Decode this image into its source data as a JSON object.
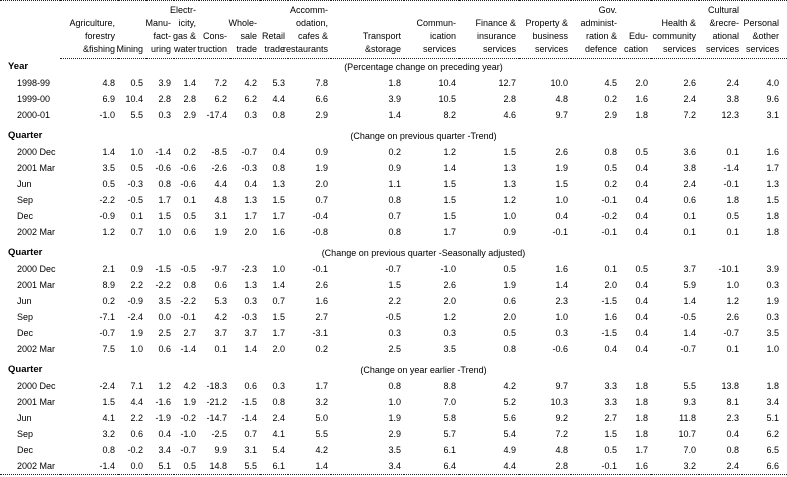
{
  "table": {
    "columns": [
      {
        "name": "Agriculture, forestry & fishing",
        "lines": [
          "Agriculture,",
          "forestry",
          "&fishing"
        ]
      },
      {
        "name": "Mining",
        "lines": [
          "Mining"
        ]
      },
      {
        "name": "Manufacturing",
        "lines": [
          "Manu-",
          "fact-",
          "uring"
        ]
      },
      {
        "name": "Electricity, gas & water",
        "lines": [
          "Electr-",
          "icity,",
          "gas &",
          "water"
        ]
      },
      {
        "name": "Construction",
        "lines": [
          "Cons-",
          "truction"
        ]
      },
      {
        "name": "Wholesale trade",
        "lines": [
          "Whole-",
          "sale",
          "trade"
        ]
      },
      {
        "name": "Retail trade",
        "lines": [
          "Retail",
          "trade"
        ]
      },
      {
        "name": "Accommodation, cafes & restaurants",
        "lines": [
          "Accomm-",
          "odation,",
          "cafes &",
          "restaurants"
        ]
      },
      {
        "name": "Transport & storage",
        "lines": [
          "Transport",
          "&storage"
        ]
      },
      {
        "name": "Communication services",
        "lines": [
          "Commun-",
          "ication",
          "services"
        ]
      },
      {
        "name": "Finance & insurance services",
        "lines": [
          "Finance &",
          "insurance",
          "services"
        ]
      },
      {
        "name": "Property & business services",
        "lines": [
          "Property &",
          "business",
          "services"
        ]
      },
      {
        "name": "Gov. administration & defence",
        "lines": [
          "Gov.",
          "administ-",
          "ration &",
          "defence"
        ]
      },
      {
        "name": "Education",
        "lines": [
          "Edu-",
          "cation"
        ]
      },
      {
        "name": "Health & community services",
        "lines": [
          "Health &",
          "community",
          "services"
        ]
      },
      {
        "name": "Cultural & recreational services",
        "lines": [
          "Cultural",
          "&recre-",
          "ational",
          "services"
        ]
      },
      {
        "name": "Personal & other services",
        "lines": [
          "Personal",
          "&other",
          "services"
        ]
      }
    ],
    "sections": [
      {
        "label": "Year",
        "note": "(Percentage change on preceding year)",
        "rows": [
          {
            "label": "1998-99",
            "values": [
              "4.8",
              "0.5",
              "3.9",
              "1.4",
              "7.2",
              "4.2",
              "5.3",
              "7.8",
              "1.8",
              "10.4",
              "12.7",
              "10.0",
              "4.5",
              "2.0",
              "2.6",
              "2.4",
              "4.0"
            ]
          },
          {
            "label": "1999-00",
            "values": [
              "6.9",
              "10.4",
              "2.8",
              "2.8",
              "6.2",
              "6.2",
              "4.4",
              "6.6",
              "3.9",
              "10.5",
              "2.8",
              "4.8",
              "0.2",
              "1.6",
              "2.4",
              "3.8",
              "9.6"
            ]
          },
          {
            "label": "2000-01",
            "values": [
              "-1.0",
              "5.5",
              "0.3",
              "2.9",
              "-17.4",
              "0.3",
              "0.8",
              "2.9",
              "1.4",
              "8.2",
              "4.6",
              "9.7",
              "2.9",
              "1.8",
              "7.2",
              "12.3",
              "3.1"
            ]
          }
        ]
      },
      {
        "label": "Quarter",
        "note": "(Change on previous quarter -Trend)",
        "rows": [
          {
            "label": "2000 Dec",
            "values": [
              "1.4",
              "1.0",
              "-1.4",
              "0.2",
              "-8.5",
              "-0.7",
              "0.4",
              "0.9",
              "0.2",
              "1.2",
              "1.5",
              "2.6",
              "0.8",
              "0.5",
              "3.6",
              "0.1",
              "1.6"
            ]
          },
          {
            "label": "2001 Mar",
            "values": [
              "3.5",
              "0.5",
              "-0.6",
              "-0.6",
              "-2.6",
              "-0.3",
              "0.8",
              "1.9",
              "0.9",
              "1.4",
              "1.3",
              "1.9",
              "0.5",
              "0.4",
              "3.8",
              "-1.4",
              "1.7"
            ]
          },
          {
            "label": "Jun",
            "values": [
              "0.5",
              "-0.3",
              "0.8",
              "-0.6",
              "4.4",
              "0.4",
              "1.3",
              "2.0",
              "1.1",
              "1.5",
              "1.3",
              "1.5",
              "0.2",
              "0.4",
              "2.4",
              "-0.1",
              "1.3"
            ]
          },
          {
            "label": "Sep",
            "values": [
              "-2.2",
              "-0.5",
              "1.7",
              "0.1",
              "4.8",
              "1.3",
              "1.5",
              "0.7",
              "0.8",
              "1.5",
              "1.2",
              "1.0",
              "-0.1",
              "0.4",
              "0.6",
              "1.8",
              "1.5"
            ]
          },
          {
            "label": "Dec",
            "values": [
              "-0.9",
              "0.1",
              "1.5",
              "0.5",
              "3.1",
              "1.7",
              "1.7",
              "-0.4",
              "0.7",
              "1.5",
              "1.0",
              "0.4",
              "-0.2",
              "0.4",
              "0.1",
              "0.5",
              "1.8"
            ]
          },
          {
            "label": "2002 Mar",
            "values": [
              "1.2",
              "0.7",
              "1.0",
              "0.6",
              "1.9",
              "2.0",
              "1.6",
              "-0.8",
              "0.8",
              "1.7",
              "0.9",
              "-0.1",
              "-0.1",
              "0.4",
              "0.1",
              "0.1",
              "1.8"
            ]
          }
        ]
      },
      {
        "label": "Quarter",
        "note": "(Change on previous quarter -Seasonally adjusted)",
        "rows": [
          {
            "label": "2000 Dec",
            "values": [
              "2.1",
              "0.9",
              "-1.5",
              "-0.5",
              "-9.7",
              "-2.3",
              "1.0",
              "-0.1",
              "-0.7",
              "-1.0",
              "0.5",
              "1.6",
              "0.1",
              "0.5",
              "3.7",
              "-10.1",
              "3.9"
            ]
          },
          {
            "label": "2001 Mar",
            "values": [
              "8.9",
              "2.2",
              "-2.2",
              "0.8",
              "0.6",
              "1.3",
              "1.4",
              "2.6",
              "1.5",
              "2.6",
              "1.9",
              "1.4",
              "2.0",
              "0.4",
              "5.9",
              "1.0",
              "0.3"
            ]
          },
          {
            "label": "Jun",
            "values": [
              "0.2",
              "-0.9",
              "3.5",
              "-2.2",
              "5.3",
              "0.3",
              "0.7",
              "1.6",
              "2.2",
              "2.0",
              "0.6",
              "2.3",
              "-1.5",
              "0.4",
              "1.4",
              "1.2",
              "1.9"
            ]
          },
          {
            "label": "Sep",
            "values": [
              "-7.1",
              "-2.4",
              "0.0",
              "-0.1",
              "4.2",
              "-0.3",
              "1.5",
              "2.7",
              "-0.5",
              "1.2",
              "2.0",
              "1.0",
              "1.6",
              "0.4",
              "-0.5",
              "2.6",
              "0.3"
            ]
          },
          {
            "label": "Dec",
            "values": [
              "-0.7",
              "1.9",
              "2.5",
              "2.7",
              "3.7",
              "3.7",
              "1.7",
              "-3.1",
              "0.3",
              "0.3",
              "0.5",
              "0.3",
              "-1.5",
              "0.4",
              "1.4",
              "-0.7",
              "3.5"
            ]
          },
          {
            "label": "2002 Mar",
            "values": [
              "7.5",
              "1.0",
              "0.6",
              "-1.4",
              "0.1",
              "1.4",
              "2.0",
              "0.2",
              "2.5",
              "3.5",
              "0.8",
              "-0.6",
              "0.4",
              "0.4",
              "-0.7",
              "0.1",
              "1.0"
            ]
          }
        ]
      },
      {
        "label": "Quarter",
        "note": "(Change on year earlier -Trend)",
        "rows": [
          {
            "label": "2000 Dec",
            "values": [
              "-2.4",
              "7.1",
              "1.2",
              "4.2",
              "-18.3",
              "0.6",
              "0.3",
              "1.7",
              "0.8",
              "8.8",
              "4.2",
              "9.7",
              "3.3",
              "1.8",
              "5.5",
              "13.8",
              "1.8"
            ]
          },
          {
            "label": "2001 Mar",
            "values": [
              "1.5",
              "4.4",
              "-1.6",
              "1.9",
              "-21.2",
              "-1.5",
              "0.8",
              "3.2",
              "1.0",
              "7.0",
              "5.2",
              "10.3",
              "3.3",
              "1.8",
              "9.3",
              "8.1",
              "3.4"
            ]
          },
          {
            "label": "Jun",
            "values": [
              "4.1",
              "2.2",
              "-1.9",
              "-0.2",
              "-14.7",
              "-1.4",
              "2.4",
              "5.0",
              "1.9",
              "5.8",
              "5.6",
              "9.2",
              "2.7",
              "1.8",
              "11.8",
              "2.3",
              "5.1"
            ]
          },
          {
            "label": "Sep",
            "values": [
              "3.2",
              "0.6",
              "0.4",
              "-1.0",
              "-2.5",
              "0.7",
              "4.1",
              "5.5",
              "2.9",
              "5.7",
              "5.4",
              "7.2",
              "1.5",
              "1.8",
              "10.7",
              "0.4",
              "6.2"
            ]
          },
          {
            "label": "Dec",
            "values": [
              "0.8",
              "-0.2",
              "3.4",
              "-0.7",
              "9.9",
              "3.1",
              "5.4",
              "4.2",
              "3.5",
              "6.1",
              "4.9",
              "4.8",
              "0.5",
              "1.7",
              "7.0",
              "0.8",
              "6.5"
            ]
          },
          {
            "label": "2002 Mar",
            "values": [
              "-1.4",
              "0.0",
              "5.1",
              "0.5",
              "14.8",
              "5.5",
              "6.1",
              "1.4",
              "3.4",
              "6.4",
              "4.4",
              "2.8",
              "-0.1",
              "1.6",
              "3.2",
              "2.4",
              "6.6"
            ]
          }
        ]
      }
    ]
  }
}
